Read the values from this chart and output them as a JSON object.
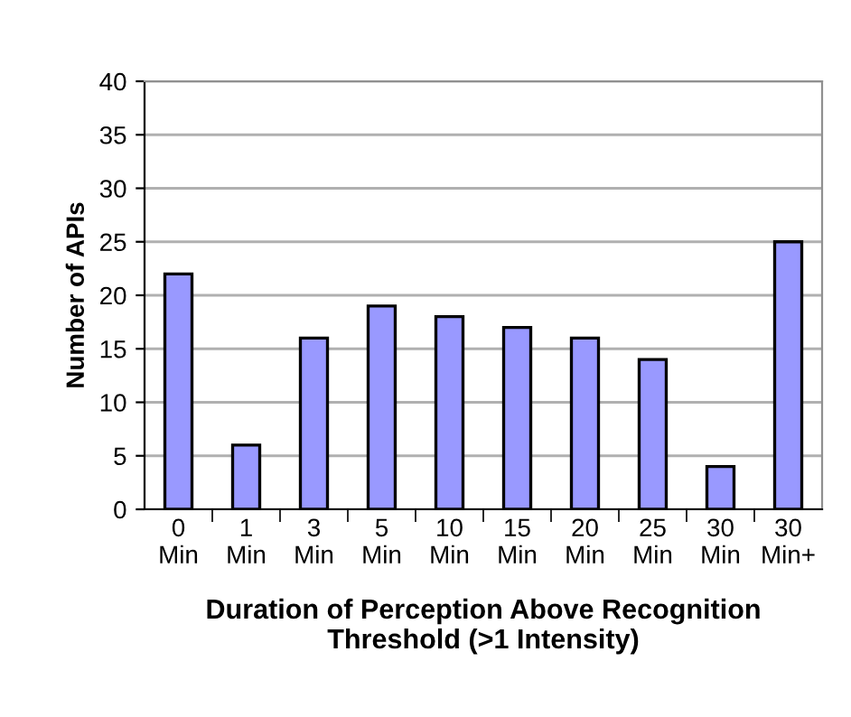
{
  "chart_data": {
    "type": "bar",
    "categories": [
      "0\nMin",
      "1\nMin",
      "3\nMin",
      "5\nMin",
      "10\nMin",
      "15\nMin",
      "20\nMin",
      "25\nMin",
      "30\nMin",
      "30\nMin+"
    ],
    "values": [
      22,
      6,
      16,
      19,
      18,
      17,
      16,
      14,
      4,
      25
    ],
    "color": "#9999ff",
    "xlabel": "Duration of Perception Above Recognition\nThreshold (>1 Intensity)",
    "ylabel": "Number of APIs",
    "ylim": [
      0,
      40
    ],
    "yticks": [
      0,
      5,
      10,
      15,
      20,
      25,
      30,
      35,
      40
    ],
    "grid": "y",
    "legend": false
  }
}
